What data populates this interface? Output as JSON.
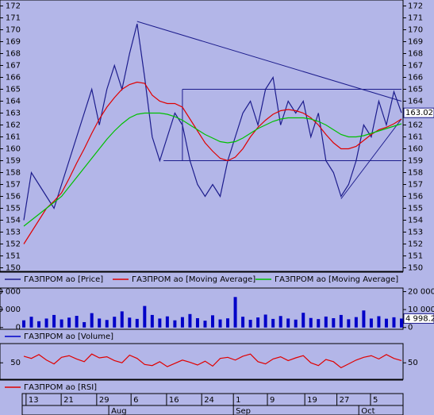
{
  "chart_data": [
    {
      "type": "line",
      "x": [
        0,
        2,
        4,
        6,
        8,
        10,
        12,
        14,
        16,
        18,
        20,
        22,
        24,
        26,
        28,
        30,
        32,
        34,
        36,
        38,
        40,
        42,
        44,
        46,
        48,
        50,
        52,
        54,
        56,
        58,
        60,
        62,
        64,
        66,
        68,
        70,
        72,
        74,
        76,
        78,
        80,
        82,
        84,
        86,
        88,
        90,
        92,
        94,
        96,
        98,
        100
      ],
      "xlim": [
        0,
        100
      ],
      "ylim": [
        149.7,
        172.5
      ],
      "yticks": [
        150,
        151,
        152,
        153,
        154,
        155,
        156,
        157,
        158,
        159,
        160,
        161,
        162,
        163,
        164,
        165,
        166,
        167,
        168,
        169,
        170,
        171,
        172
      ],
      "series": [
        {
          "name": "ГАЗПРОМ ао [Price]",
          "color": "#1c1c8c",
          "values": [
            154,
            158,
            157,
            156,
            155,
            157,
            159,
            161,
            163,
            165,
            162,
            165,
            167,
            165,
            168,
            170.5,
            166,
            161,
            159,
            161,
            163,
            162,
            159,
            157,
            156,
            157,
            156,
            159,
            161,
            163,
            164,
            162,
            165,
            166,
            162,
            164,
            163,
            164,
            161,
            163,
            159,
            158,
            156,
            157,
            159,
            162,
            161,
            164,
            162,
            164.8,
            163.02
          ]
        },
        {
          "name": "ГАЗПРОМ ао [Moving Average]",
          "color": "#e00000",
          "values": [
            152,
            153,
            154,
            155,
            155.6,
            156.3,
            157.5,
            158.8,
            160,
            161.3,
            162.5,
            163.5,
            164.3,
            165,
            165.4,
            165.6,
            165.5,
            164.5,
            164,
            163.8,
            163.8,
            163.5,
            162.5,
            161.5,
            160.5,
            159.8,
            159.2,
            159,
            159.3,
            160,
            161,
            161.8,
            162.4,
            162.9,
            163.2,
            163.3,
            163.2,
            163,
            162.6,
            162,
            161.2,
            160.5,
            160,
            160,
            160.2,
            160.7,
            161.2,
            161.6,
            161.8,
            162.1,
            162.5
          ]
        },
        {
          "name": "ГАЗПРОМ ао [Moving Average]",
          "color": "#00c000",
          "values": [
            153.5,
            154,
            154.5,
            155,
            155.5,
            156,
            156.8,
            157.6,
            158.4,
            159.2,
            160,
            160.8,
            161.5,
            162.1,
            162.6,
            162.9,
            163,
            163,
            163,
            162.9,
            162.7,
            162.4,
            162,
            161.6,
            161.2,
            160.9,
            160.6,
            160.5,
            160.6,
            160.9,
            161.3,
            161.7,
            162,
            162.3,
            162.5,
            162.6,
            162.6,
            162.6,
            162.5,
            162.3,
            162,
            161.6,
            161.2,
            161,
            161,
            161.1,
            161.3,
            161.5,
            161.7,
            161.9,
            162.1
          ]
        }
      ],
      "trendlines": [
        {
          "x": [
            30,
            100
          ],
          "y": [
            170.7,
            164
          ]
        },
        {
          "x": [
            84,
            100
          ],
          "y": [
            155.8,
            162.5
          ]
        },
        {
          "x": [
            42,
            100
          ],
          "y": [
            165,
            165
          ]
        },
        {
          "x": [
            37,
            100
          ],
          "y": [
            159,
            159
          ]
        },
        {
          "x": [
            42,
            42
          ],
          "y": [
            165,
            159
          ]
        }
      ]
    },
    {
      "type": "bar",
      "x": [
        0,
        2,
        4,
        6,
        8,
        10,
        12,
        14,
        16,
        18,
        20,
        22,
        24,
        26,
        28,
        30,
        32,
        34,
        36,
        38,
        40,
        42,
        44,
        46,
        48,
        50,
        52,
        54,
        56,
        58,
        60,
        62,
        64,
        66,
        68,
        70,
        72,
        74,
        76,
        78,
        80,
        82,
        84,
        86,
        88,
        90,
        92,
        94,
        96,
        98,
        100
      ],
      "xlim": [
        0,
        100
      ],
      "ylim": [
        -1000,
        22000
      ],
      "yticks": [
        0,
        {
          "value": 10000,
          "label": "10 000"
        },
        {
          "value": 20000,
          "label": "20 000"
        }
      ],
      "series": [
        {
          "name": "ГАЗПРОМ ао [Volume]",
          "color": "#0000c8",
          "values": [
            4000,
            6000,
            3500,
            5000,
            7000,
            4500,
            5500,
            6500,
            3000,
            8000,
            5000,
            4200,
            6000,
            9000,
            5500,
            4800,
            12000,
            7000,
            5000,
            6200,
            4000,
            5800,
            7500,
            5200,
            3800,
            6800,
            4500,
            5100,
            17000,
            6000,
            4300,
            5600,
            7200,
            4800,
            6400,
            5000,
            4400,
            8200,
            5300,
            4700,
            6100,
            5200,
            7000,
            4600,
            5800,
            9500,
            5000,
            6300,
            4900,
            5700,
            4998.2
          ],
          "value_labels": [
            null,
            null,
            null,
            null,
            null,
            null,
            null,
            null,
            null,
            null,
            null,
            null,
            null,
            null,
            null,
            null,
            null,
            null,
            null,
            null,
            null,
            null,
            null,
            null,
            null,
            null,
            null,
            null,
            null,
            null,
            null,
            null,
            null,
            null,
            null,
            null,
            null,
            null,
            null,
            null,
            null,
            null,
            null,
            null,
            null,
            null,
            null,
            null,
            null,
            null,
            "4 998.2"
          ]
        }
      ]
    },
    {
      "type": "line",
      "x": [
        0,
        2,
        4,
        6,
        8,
        10,
        12,
        14,
        16,
        18,
        20,
        22,
        24,
        26,
        28,
        30,
        32,
        34,
        36,
        38,
        40,
        42,
        44,
        46,
        48,
        50,
        52,
        54,
        56,
        58,
        60,
        62,
        64,
        66,
        68,
        70,
        72,
        74,
        76,
        78,
        80,
        82,
        84,
        86,
        88,
        90,
        92,
        94,
        96,
        98,
        100
      ],
      "xlim": [
        0,
        100
      ],
      "ylim": [
        20,
        85
      ],
      "yticks": [
        50
      ],
      "series": [
        {
          "name": "ГАЗПРОМ ао [RSI]",
          "color": "#e00000",
          "values": [
            62,
            58,
            65,
            55,
            48,
            60,
            63,
            57,
            52,
            66,
            59,
            61,
            54,
            50,
            64,
            58,
            47,
            45,
            52,
            43,
            49,
            55,
            51,
            46,
            53,
            44,
            58,
            60,
            55,
            62,
            66,
            52,
            48,
            57,
            61,
            54,
            59,
            63,
            50,
            45,
            56,
            52,
            41,
            48,
            55,
            60,
            63,
            57,
            65,
            58,
            54
          ]
        }
      ],
      "xticks": [
        {
          "value": 0.6,
          "label": "13"
        },
        {
          "value": 9.9,
          "label": "21"
        },
        {
          "value": 19.3,
          "label": "29"
        },
        {
          "value": 28.4,
          "label": "6"
        },
        {
          "value": 37.8,
          "label": "16"
        },
        {
          "value": 47.1,
          "label": "24"
        },
        {
          "value": 55.5,
          "label": "1"
        },
        {
          "value": 64.5,
          "label": "9"
        },
        {
          "value": 74.4,
          "label": "19"
        },
        {
          "value": 82.9,
          "label": "27"
        },
        {
          "value": 91.8,
          "label": "5"
        }
      ],
      "month_ticks": [
        {
          "value": 22.5,
          "label": "Aug"
        },
        {
          "value": 55.5,
          "label": "Sep"
        },
        {
          "value": 88.7,
          "label": "Oct"
        }
      ]
    }
  ]
}
